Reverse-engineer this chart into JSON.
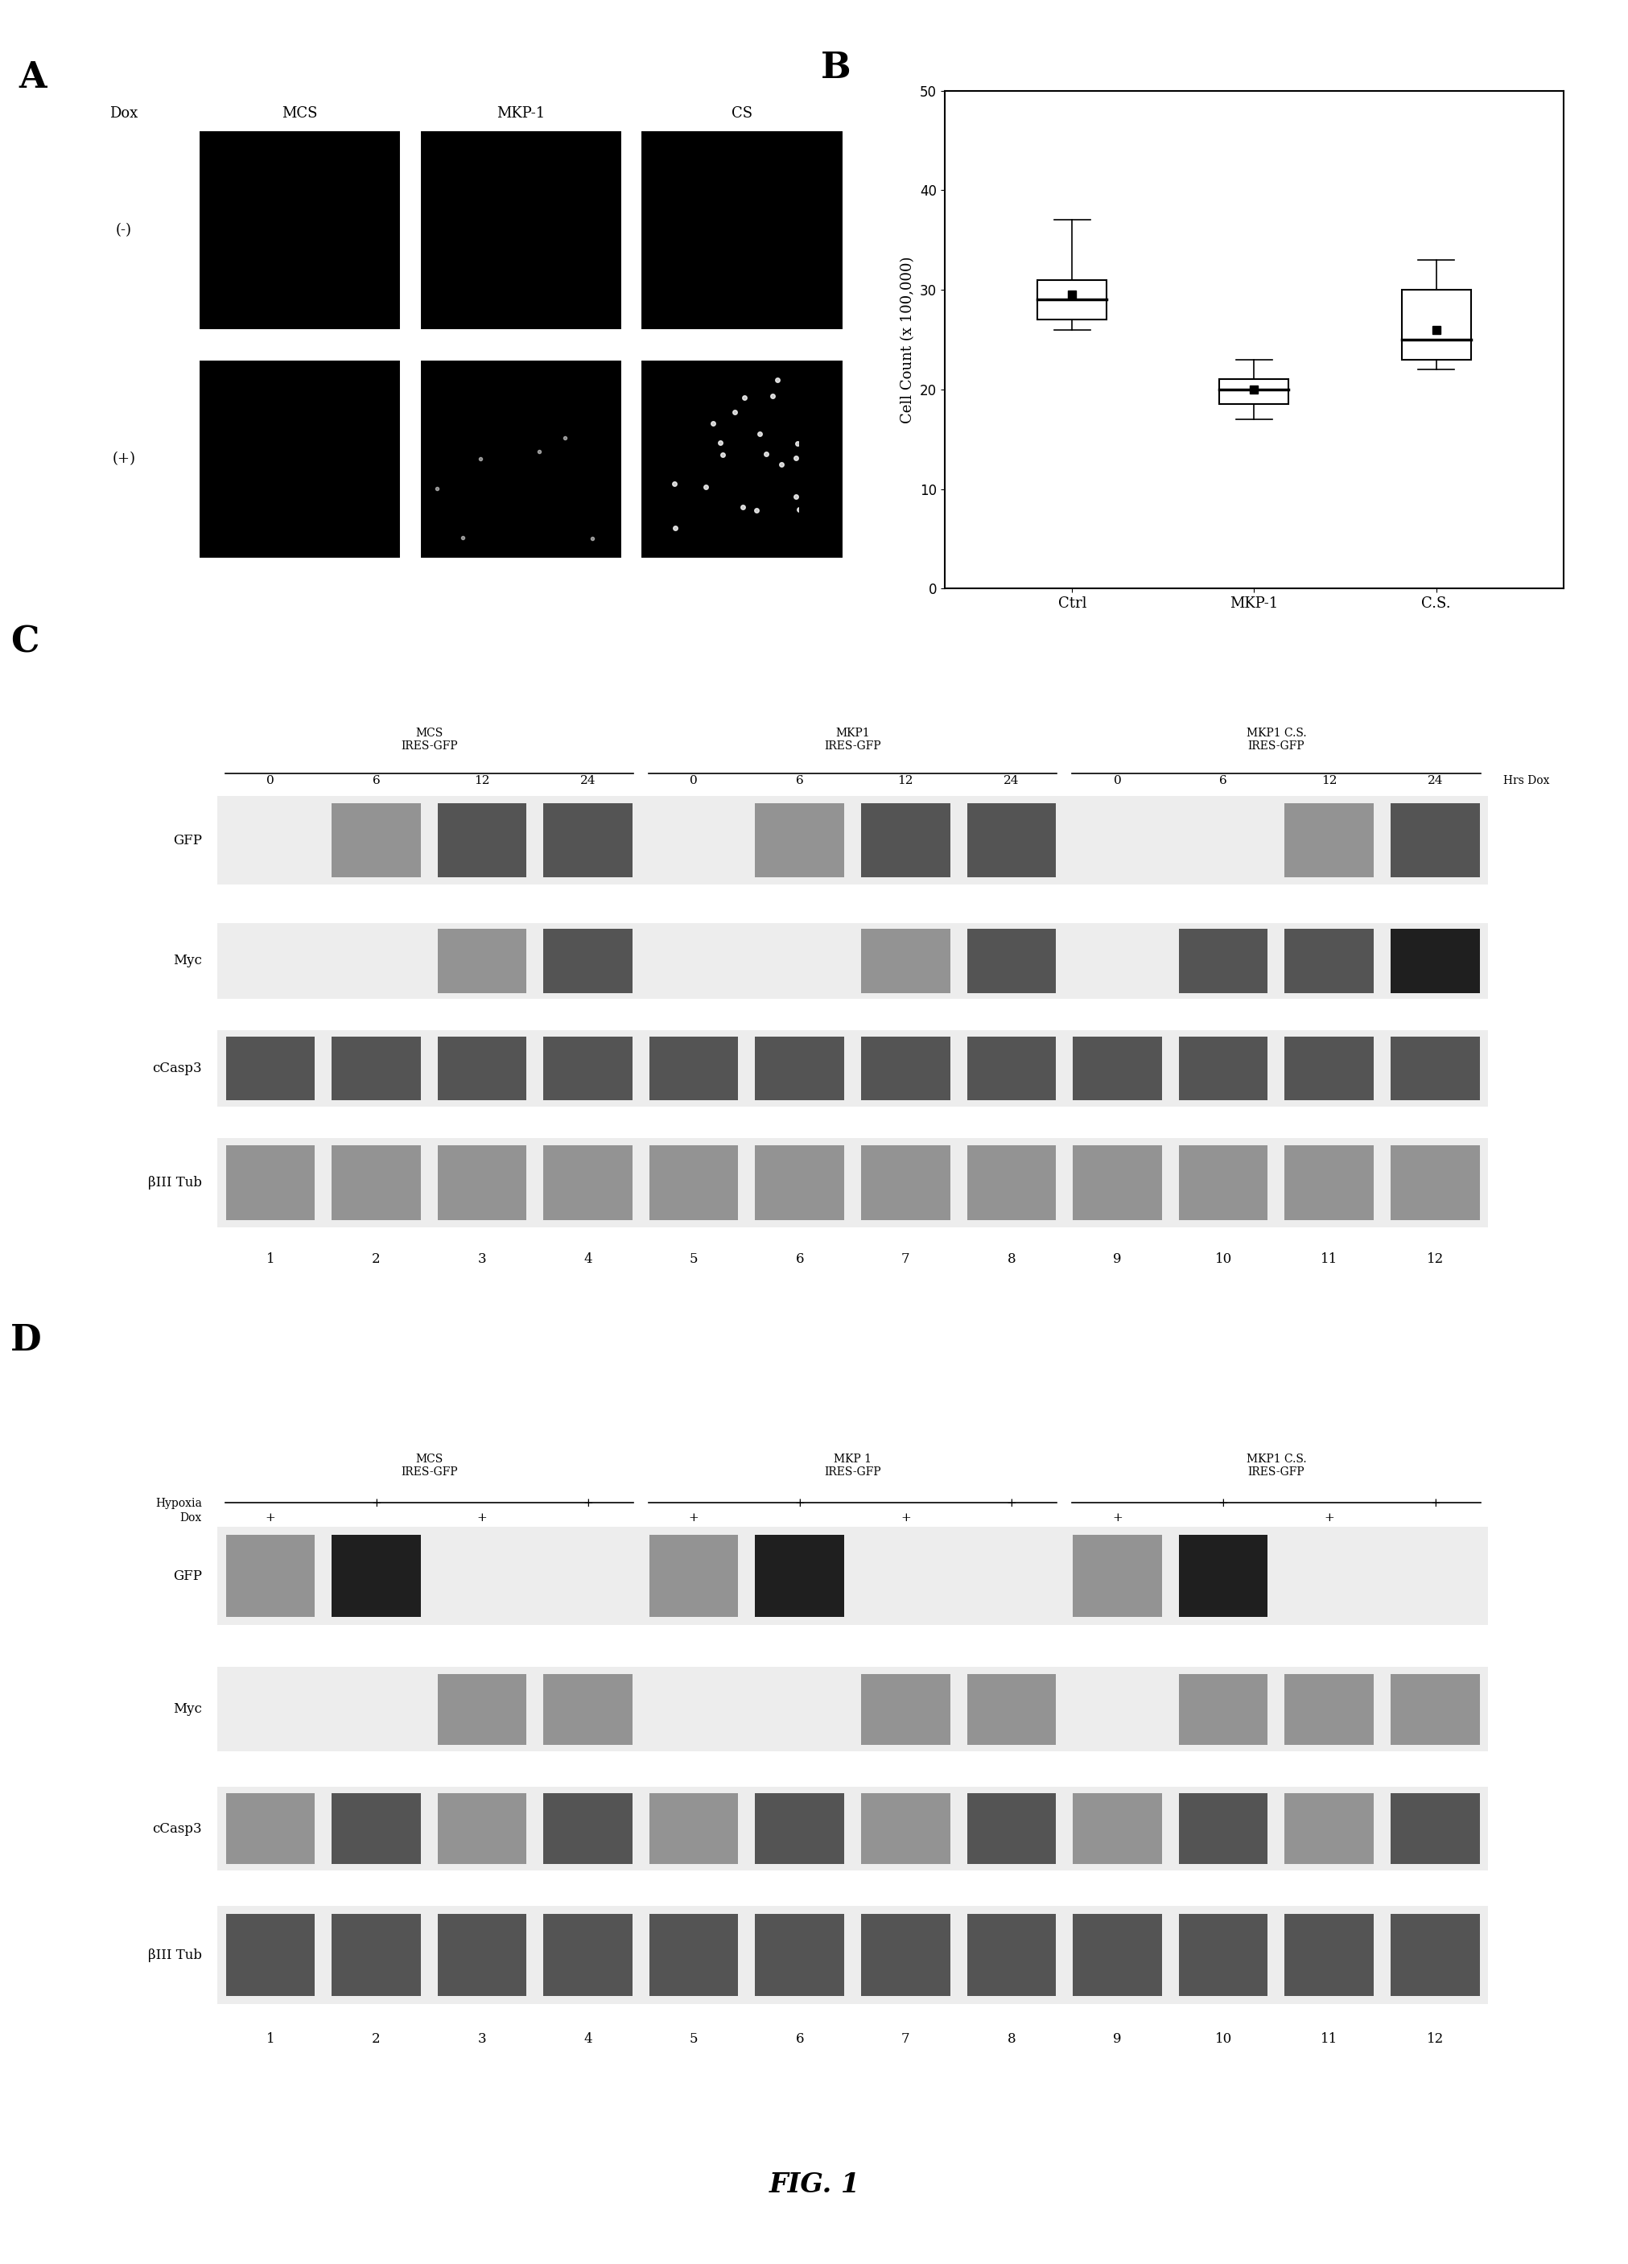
{
  "fig_label": "FIG. 1",
  "panel_A": {
    "label": "A",
    "dox_label": "Dox",
    "col_labels": [
      "MCS",
      "MKP-1",
      "CS"
    ],
    "row_labels": [
      "(-)",
      "(+)"
    ],
    "n_cols": 3,
    "n_rows": 2
  },
  "panel_B": {
    "label": "B",
    "ylabel": "Cell Count (x 100,000)",
    "ylim": [
      0,
      50
    ],
    "yticks": [
      0,
      10,
      20,
      30,
      40,
      50
    ],
    "groups": [
      "Ctrl",
      "MKP-1",
      "C.S."
    ],
    "box_data": {
      "Ctrl": {
        "q1": 27,
        "median": 29,
        "q3": 31,
        "whisker_low": 26,
        "whisker_high": 37,
        "mean": 29.5
      },
      "MKP-1": {
        "q1": 18.5,
        "median": 20,
        "q3": 21,
        "whisker_low": 17,
        "whisker_high": 23,
        "mean": 20
      },
      "C.S.": {
        "q1": 23,
        "median": 25,
        "q3": 30,
        "whisker_low": 22,
        "whisker_high": 33,
        "mean": 26
      }
    }
  },
  "panel_C": {
    "label": "C",
    "group_labels": [
      "MCS\nIRES-GFP",
      "MKP1\nIRES-GFP",
      "MKP1 C.S.\nIRES-GFP"
    ],
    "time_labels": [
      "0",
      "6",
      "12",
      "24",
      "0",
      "6",
      "12",
      "24",
      "0",
      "6",
      "12",
      "24"
    ],
    "hrs_dox_label": "Hrs Dox",
    "row_labels": [
      "GFP",
      "Myc",
      "cCasp3",
      "βIII Tub"
    ],
    "lane_numbers": [
      "1",
      "2",
      "3",
      "4",
      "5",
      "6",
      "7",
      "8",
      "9",
      "10",
      "11",
      "12"
    ],
    "band_patterns": {
      "GFP": [
        0,
        1,
        2,
        2,
        0,
        1,
        2,
        2,
        0,
        0,
        1,
        2
      ],
      "Myc": [
        0,
        0,
        1,
        2,
        0,
        0,
        1,
        2,
        0,
        2,
        2,
        3
      ],
      "cCasp3": [
        2,
        2,
        2,
        2,
        2,
        2,
        2,
        2,
        2,
        2,
        2,
        2
      ],
      "bIIITub": [
        1,
        1,
        1,
        1,
        1,
        1,
        1,
        1,
        1,
        1,
        1,
        1
      ]
    }
  },
  "panel_D": {
    "label": "D",
    "group_labels": [
      "MCS\nIRES-GFP",
      "MKP 1\nIRES-GFP",
      "MKP1 C.S.\nIRES-GFP"
    ],
    "hypoxia_row": [
      "",
      "+",
      "",
      "+",
      "",
      "+",
      "",
      "+",
      "",
      "+",
      "",
      "+"
    ],
    "dox_row": [
      "+",
      "",
      "+",
      "",
      "+",
      "",
      "+",
      "",
      "+",
      "",
      "+",
      ""
    ],
    "row_labels": [
      "GFP",
      "Myc",
      "cCasp3",
      "βIII Tub"
    ],
    "lane_numbers": [
      "1",
      "2",
      "3",
      "4",
      "5",
      "6",
      "7",
      "8",
      "9",
      "10",
      "11",
      "12"
    ],
    "band_patterns": {
      "GFP": [
        1,
        3,
        0,
        0,
        1,
        3,
        0,
        0,
        1,
        3,
        0,
        0
      ],
      "Myc": [
        0,
        0,
        1,
        1,
        0,
        0,
        1,
        1,
        0,
        1,
        1,
        1
      ],
      "cCasp3": [
        1,
        2,
        1,
        2,
        1,
        2,
        1,
        2,
        1,
        2,
        1,
        2
      ],
      "bIIITub": [
        2,
        2,
        2,
        2,
        2,
        2,
        2,
        2,
        2,
        2,
        2,
        2
      ]
    }
  },
  "background_color": "#ffffff"
}
